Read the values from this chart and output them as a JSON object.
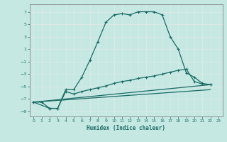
{
  "xlabel": "Humidex (Indice chaleur)",
  "bg_color": "#c5e8e3",
  "line_color": "#1a6b65",
  "grid_color": "#b8d8d4",
  "xlim": [
    -0.5,
    23.5
  ],
  "ylim": [
    -9.8,
    8.2
  ],
  "xticks": [
    0,
    1,
    2,
    3,
    4,
    5,
    6,
    7,
    8,
    9,
    10,
    11,
    12,
    13,
    14,
    15,
    16,
    17,
    18,
    19,
    20,
    21,
    22,
    23
  ],
  "yticks": [
    -9,
    -7,
    -5,
    -3,
    -1,
    1,
    3,
    5,
    7
  ],
  "curve1_x": [
    0,
    1,
    2,
    3,
    4,
    5,
    6,
    7,
    8,
    9,
    10,
    11,
    12,
    13,
    14,
    15,
    16,
    17,
    18,
    19,
    20,
    21,
    22
  ],
  "curve1_y": [
    -7.5,
    -7.5,
    -8.5,
    -8.5,
    -5.5,
    -5.5,
    -3.5,
    -0.8,
    2.2,
    5.3,
    6.5,
    6.7,
    6.5,
    7.0,
    7.0,
    7.0,
    6.5,
    3.0,
    1.0,
    -2.8,
    -3.5,
    -4.5,
    -4.7
  ],
  "curve2_x": [
    0,
    2,
    3,
    4,
    5,
    6,
    7,
    8,
    9,
    10,
    11,
    12,
    13,
    14,
    15,
    16,
    17,
    18,
    19,
    20,
    21,
    22
  ],
  "curve2_y": [
    -7.5,
    -8.5,
    -8.5,
    -5.8,
    -6.2,
    -5.8,
    -5.5,
    -5.2,
    -4.9,
    -4.5,
    -4.2,
    -4.0,
    -3.7,
    -3.5,
    -3.3,
    -3.0,
    -2.7,
    -2.4,
    -2.2,
    -4.2,
    -4.6,
    -4.7
  ],
  "curve3_x": [
    0,
    22
  ],
  "curve3_y": [
    -7.5,
    -4.7
  ],
  "curve4_x": [
    0,
    22
  ],
  "curve4_y": [
    -7.5,
    -5.5
  ]
}
